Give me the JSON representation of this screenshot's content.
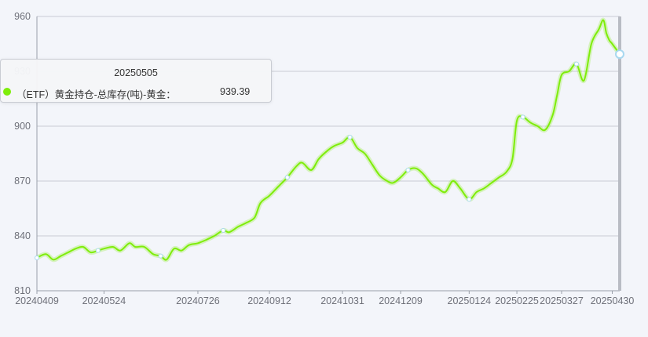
{
  "chart_data": {
    "type": "line",
    "x_ticks": [
      "20240409",
      "20240524",
      "20240726",
      "20240912",
      "20241031",
      "20241209",
      "20250124",
      "20250225",
      "20250327",
      "20250430"
    ],
    "y_ticks": [
      "960",
      "930",
      "900",
      "870",
      "840",
      "810"
    ],
    "ylim": [
      810,
      960
    ],
    "grid": true,
    "series": [
      {
        "name": "(ETF) 黄金持仓-总库存(吨)-黄金",
        "color": "#7eed0a",
        "points": [
          [
            "20240409",
            828
          ],
          [
            "20240415",
            830
          ],
          [
            "20240420",
            827
          ],
          [
            "20240425",
            829
          ],
          [
            "20240430",
            831
          ],
          [
            "20240505",
            833
          ],
          [
            "20240510",
            834
          ],
          [
            "20240515",
            831
          ],
          [
            "20240520",
            832
          ],
          [
            "20240524",
            833
          ],
          [
            "20240530",
            834
          ],
          [
            "20240604",
            832
          ],
          [
            "20240610",
            836
          ],
          [
            "20240614",
            834
          ],
          [
            "20240620",
            834
          ],
          [
            "20240626",
            830
          ],
          [
            "20240701",
            829
          ],
          [
            "20240705",
            827
          ],
          [
            "20240710",
            833
          ],
          [
            "20240715",
            832
          ],
          [
            "20240720",
            835
          ],
          [
            "20240726",
            836
          ],
          [
            "20240801",
            838
          ],
          [
            "20240806",
            840
          ],
          [
            "20240812",
            843
          ],
          [
            "20240816",
            842
          ],
          [
            "20240822",
            845
          ],
          [
            "20240827",
            847
          ],
          [
            "20240902",
            850
          ],
          [
            "20240906",
            858
          ],
          [
            "20240912",
            862
          ],
          [
            "20240918",
            867
          ],
          [
            "20240924",
            872
          ],
          [
            "20240930",
            878
          ],
          [
            "20241004",
            880
          ],
          [
            "20241010",
            876
          ],
          [
            "20241015",
            882
          ],
          [
            "20241020",
            886
          ],
          [
            "20241025",
            889
          ],
          [
            "20241031",
            891
          ],
          [
            "20241105",
            894
          ],
          [
            "20241110",
            888
          ],
          [
            "20241115",
            885
          ],
          [
            "20241120",
            879
          ],
          [
            "20241125",
            873
          ],
          [
            "20241130",
            870
          ],
          [
            "20241204",
            869
          ],
          [
            "20241209",
            872
          ],
          [
            "20241214",
            876
          ],
          [
            "20241219",
            877
          ],
          [
            "20241224",
            874
          ],
          [
            "20241230",
            868
          ],
          [
            "20250103",
            866
          ],
          [
            "20250108",
            864
          ],
          [
            "20250113",
            870
          ],
          [
            "20250118",
            866
          ],
          [
            "20250124",
            860
          ],
          [
            "20250129",
            864
          ],
          [
            "20250203",
            866
          ],
          [
            "20250208",
            869
          ],
          [
            "20250213",
            872
          ],
          [
            "20250218",
            875
          ],
          [
            "20250222",
            882
          ],
          [
            "20250225",
            903
          ],
          [
            "20250301",
            905
          ],
          [
            "20250306",
            902
          ],
          [
            "20250311",
            900
          ],
          [
            "20250316",
            898
          ],
          [
            "20250321",
            906
          ],
          [
            "20250324",
            917
          ],
          [
            "20250327",
            928
          ],
          [
            "20250401",
            930
          ],
          [
            "20250406",
            934
          ],
          [
            "20250411",
            925
          ],
          [
            "20250416",
            945
          ],
          [
            "20250421",
            953
          ],
          [
            "20250424",
            958
          ],
          [
            "20250426",
            951
          ],
          [
            "20250428",
            947
          ],
          [
            "20250430",
            945
          ],
          [
            "20250505",
            939.39
          ]
        ]
      }
    ]
  },
  "tooltip": {
    "date": "20250505",
    "series_name": "（ETF）黄金持仓-总库存(吨)-黄金：",
    "value": "939.39",
    "marker_color": "#7eed0a"
  }
}
